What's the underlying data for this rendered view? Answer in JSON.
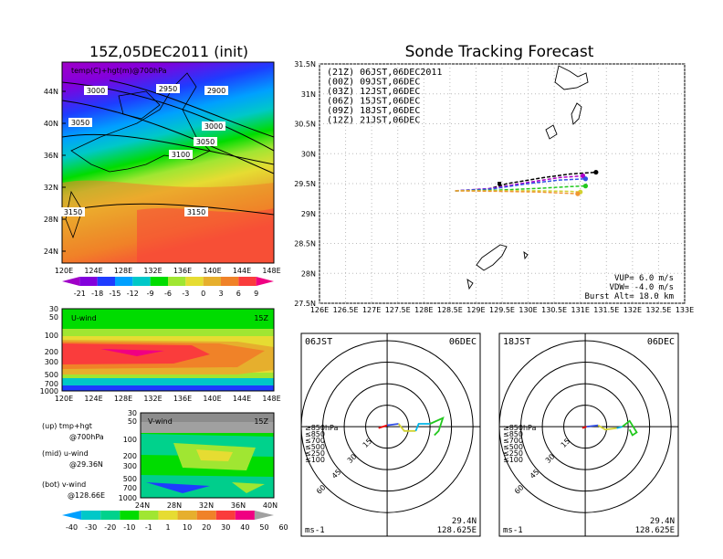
{
  "left_title": "15Z,05DEC2011 (init)",
  "main_title": "Sonde Tracking Forecast",
  "colors": {
    "temp_palette": [
      "#a000c8",
      "#8200dc",
      "#1e3cff",
      "#00a0ff",
      "#00c8c8",
      "#00dc00",
      "#a0e632",
      "#e6dc32",
      "#e6af2d",
      "#f08228",
      "#fa3c3c",
      "#f00082"
    ],
    "wind_palette": [
      "#00a0ff",
      "#00c8c8",
      "#00d28c",
      "#00dc00",
      "#a0e632",
      "#e6dc32",
      "#e6af2d",
      "#f08228",
      "#fa3c3c",
      "#f00082",
      "#a0a0a0"
    ]
  },
  "temp_map": {
    "label": "temp(C)+hgt(m)@700hPa",
    "lat_ticks": [
      "44N",
      "40N",
      "36N",
      "32N",
      "28N",
      "24N"
    ],
    "lon_ticks": [
      "120E",
      "124E",
      "128E",
      "132E",
      "136E",
      "140E",
      "144E",
      "148E"
    ],
    "contour_labels": [
      "3000",
      "2950",
      "2900",
      "3050",
      "3000",
      "3050",
      "3100",
      "3150",
      "3150"
    ],
    "colorbar": [
      "-21",
      "-18",
      "-15",
      "-12",
      "-9",
      "-6",
      "-3",
      "0",
      "3",
      "6",
      "9"
    ]
  },
  "u_wind": {
    "label": "U-wind",
    "time": "15Z",
    "p_ticks": [
      "30",
      "50",
      "100",
      "200",
      "300",
      "500",
      "700",
      "1000"
    ],
    "lon_ticks": [
      "120E",
      "124E",
      "128E",
      "132E",
      "136E",
      "140E",
      "144E",
      "148E"
    ]
  },
  "v_wind": {
    "label": "V-wind",
    "time": "15Z",
    "p_ticks": [
      "30",
      "50",
      "100",
      "200",
      "300",
      "500",
      "700",
      "1000"
    ],
    "lat_ticks": [
      "24N",
      "28N",
      "32N",
      "36N",
      "40N"
    ],
    "colorbar": [
      "-40",
      "-30",
      "-20",
      "-10",
      "-1",
      "1",
      "10",
      "20",
      "30",
      "40",
      "50",
      "60"
    ]
  },
  "legend_notes": [
    "(up) tmp+hgt",
    "@700hPa",
    "(mid) u-wind",
    "@29.36N",
    "(bot) v-wind",
    "@128.66E"
  ],
  "chart_data": {
    "type": "line",
    "title": "Sonde Tracking Forecast",
    "x_ticks": [
      "126E",
      "126.5E",
      "127E",
      "127.5E",
      "128E",
      "128.5E",
      "129E",
      "129.5E",
      "130E",
      "130.5E",
      "131E",
      "131.5E",
      "132E",
      "132.5E",
      "133E"
    ],
    "y_ticks": [
      "31.5N",
      "31N",
      "30.5N",
      "30N",
      "29.5N",
      "29N",
      "28.5N",
      "28N",
      "27.5N"
    ],
    "xlim": [
      126,
      133
    ],
    "ylim": [
      27.5,
      31.5
    ],
    "grid": true,
    "legend_position": "top-left",
    "series": [
      {
        "name": "(21Z) 06JST,06DEC2011",
        "color": "#000000",
        "dash": true,
        "points": [
          [
            128.6,
            29.38
          ],
          [
            129.2,
            29.4
          ],
          [
            129.6,
            29.5
          ],
          [
            130.3,
            29.6
          ],
          [
            130.8,
            29.66
          ],
          [
            131.3,
            29.69
          ]
        ]
      },
      {
        "name": "(00Z) 09JST,06DEC",
        "color": "#b000c8",
        "dash": true,
        "points": [
          [
            128.6,
            29.38
          ],
          [
            129.3,
            29.42
          ],
          [
            130.0,
            29.52
          ],
          [
            130.6,
            29.6
          ],
          [
            131.05,
            29.63
          ]
        ]
      },
      {
        "name": "(03Z) 12JST,06DEC",
        "color": "#3250e6",
        "dash": true,
        "points": [
          [
            128.6,
            29.38
          ],
          [
            129.3,
            29.41
          ],
          [
            130.0,
            29.5
          ],
          [
            130.6,
            29.56
          ],
          [
            131.1,
            29.58
          ]
        ]
      },
      {
        "name": "(06Z) 15JST,06DEC",
        "color": "#22c81e",
        "dash": true,
        "points": [
          [
            128.6,
            29.38
          ],
          [
            129.4,
            29.39
          ],
          [
            130.2,
            29.42
          ],
          [
            130.8,
            29.45
          ],
          [
            131.1,
            29.46
          ]
        ]
      },
      {
        "name": "(09Z) 18JST,06DEC",
        "color": "#d2d232",
        "dash": true,
        "points": [
          [
            128.6,
            29.38
          ],
          [
            129.4,
            29.38
          ],
          [
            130.2,
            29.38
          ],
          [
            130.8,
            29.37
          ],
          [
            131.0,
            29.36
          ]
        ]
      },
      {
        "name": "(12Z) 21JST,06DEC",
        "color": "#f09632",
        "dash": true,
        "points": [
          [
            128.6,
            29.38
          ],
          [
            129.5,
            29.37
          ],
          [
            130.2,
            29.36
          ],
          [
            130.7,
            29.34
          ],
          [
            130.95,
            29.33
          ]
        ]
      }
    ],
    "annotations": [
      "VUP=  6.0  m/s",
      "VDW= -4.0  m/s",
      "Burst Alt=  18.0  km"
    ]
  },
  "hodo_left": {
    "time": "06JST",
    "date": "06DEC",
    "rings": [
      "15",
      "30",
      "45",
      "60"
    ],
    "unit": "ms-1",
    "lat": "29.4N",
    "lon": "128.625E",
    "levels": [
      {
        "label": "≥850hPa",
        "color": "#f00000"
      },
      {
        "label": "≤850",
        "color": "#f09632"
      },
      {
        "label": "≤700",
        "color": "#d2d232"
      },
      {
        "label": "≤500",
        "color": "#22c81e"
      },
      {
        "label": "≤250",
        "color": "#00b4e6"
      },
      {
        "label": "≤100",
        "color": "#3250e6"
      }
    ],
    "segments": [
      {
        "color": "#f00000",
        "points": [
          [
            -6,
            -1
          ],
          [
            0,
            1
          ]
        ]
      },
      {
        "color": "#3250e6",
        "points": [
          [
            0,
            1
          ],
          [
            8,
            2
          ]
        ]
      },
      {
        "color": "#d2d232",
        "points": [
          [
            8,
            2
          ],
          [
            12,
            -3
          ],
          [
            20,
            -3
          ]
        ]
      },
      {
        "color": "#00b4e6",
        "points": [
          [
            20,
            -3
          ],
          [
            22,
            2
          ],
          [
            30,
            2
          ]
        ]
      },
      {
        "color": "#22c81e",
        "points": [
          [
            30,
            2
          ],
          [
            39,
            6
          ],
          [
            36,
            -3
          ],
          [
            33,
            -6
          ]
        ]
      }
    ]
  },
  "hodo_right": {
    "time": "18JST",
    "date": "06DEC",
    "rings": [
      "15",
      "30",
      "45",
      "60"
    ],
    "unit": "ms-1",
    "lat": "29.4N",
    "lon": "128.625E",
    "levels": [
      {
        "label": "≥850hPa",
        "color": "#f00000"
      },
      {
        "label": "≤850",
        "color": "#f09632"
      },
      {
        "label": "≤700",
        "color": "#d2d232"
      },
      {
        "label": "≤500",
        "color": "#22c81e"
      },
      {
        "label": "≤250",
        "color": "#00b4e6"
      },
      {
        "label": "≤100",
        "color": "#3250e6"
      }
    ],
    "segments": [
      {
        "color": "#f00000",
        "points": [
          [
            -2,
            -1
          ],
          [
            1,
            0
          ]
        ]
      },
      {
        "color": "#3250e6",
        "points": [
          [
            1,
            0
          ],
          [
            9,
            1
          ]
        ]
      },
      {
        "color": "#d2d232",
        "points": [
          [
            9,
            1
          ],
          [
            14,
            -2
          ],
          [
            22,
            -1
          ]
        ]
      },
      {
        "color": "#00b4e6",
        "points": [
          [
            22,
            -1
          ],
          [
            26,
            0
          ]
        ]
      },
      {
        "color": "#22c81e",
        "points": [
          [
            26,
            0
          ],
          [
            31,
            4
          ],
          [
            36,
            -4
          ],
          [
            33,
            -6
          ],
          [
            31,
            -2
          ]
        ]
      }
    ]
  }
}
